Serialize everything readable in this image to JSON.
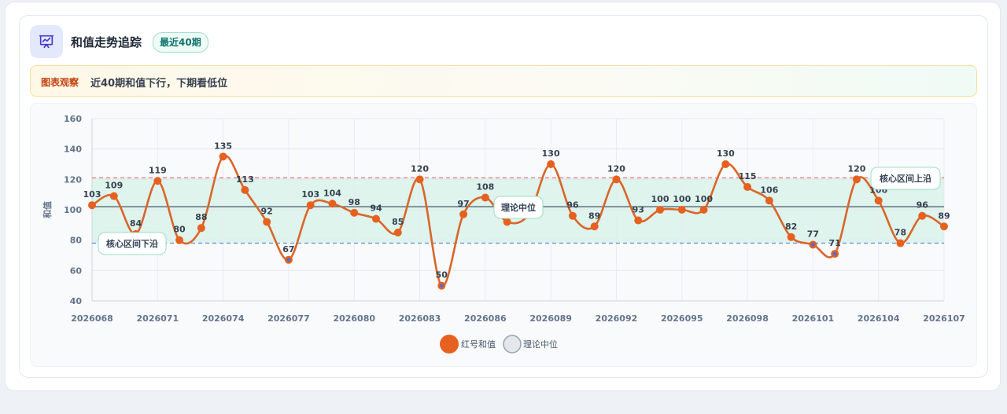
{
  "header": {
    "title": "和值走势追踪",
    "badge": "最近40期",
    "icon": "presentation-chart-icon"
  },
  "insight": {
    "label": "图表观察",
    "text": "近40期和值下行，下期看低位"
  },
  "colors": {
    "series": "#e6611f",
    "line": "#d9662a",
    "low_point": "#4f6bd6",
    "band": "#d5f2e7",
    "upper_line": "#e57373",
    "lower_line": "#5b8fd9",
    "median_line": "#475569"
  },
  "chart_data": {
    "type": "line",
    "title": "",
    "xlabel": "",
    "ylabel": "和值",
    "ylim": [
      40,
      160
    ],
    "yticks": [
      40,
      60,
      80,
      100,
      120,
      140,
      160
    ],
    "x": [
      "2026068",
      "2026069",
      "2026070",
      "2026071",
      "2026072",
      "2026073",
      "2026074",
      "2026075",
      "2026076",
      "2026077",
      "2026078",
      "2026079",
      "2026080",
      "2026081",
      "2026082",
      "2026083",
      "2026084",
      "2026085",
      "2026086",
      "2026087",
      "2026088",
      "2026089",
      "2026090",
      "2026091",
      "2026092",
      "2026093",
      "2026094",
      "2026095",
      "2026096",
      "2026097",
      "2026098",
      "2026099",
      "2026100",
      "2026101",
      "2026102",
      "2026103",
      "2026104",
      "2026105",
      "2026106",
      "2026107"
    ],
    "xtick_labels": [
      "2026068",
      "2026071",
      "2026074",
      "2026077",
      "2026080",
      "2026083",
      "2026086",
      "2026089",
      "2026092",
      "2026095",
      "2026098",
      "2026101",
      "2026104",
      "2026107"
    ],
    "series": [
      {
        "name": "红号和值",
        "values": [
          103,
          109,
          84,
          119,
          80,
          88,
          135,
          113,
          92,
          67,
          103,
          104,
          98,
          94,
          85,
          120,
          50,
          97,
          108,
          92,
          97,
          130,
          96,
          89,
          120,
          93,
          100,
          100,
          100,
          130,
          115,
          106,
          82,
          77,
          71,
          120,
          106,
          78,
          96,
          89
        ]
      }
    ],
    "reference_lines": {
      "median": {
        "label": "理论中位",
        "value": 102
      },
      "upper": {
        "label": "核心区间上沿",
        "value": 121
      },
      "lower": {
        "label": "核心区间下沿",
        "value": 78
      }
    },
    "legend": {
      "position": "bottom",
      "items": [
        "红号和值",
        "理论中位"
      ]
    },
    "grid": true
  }
}
